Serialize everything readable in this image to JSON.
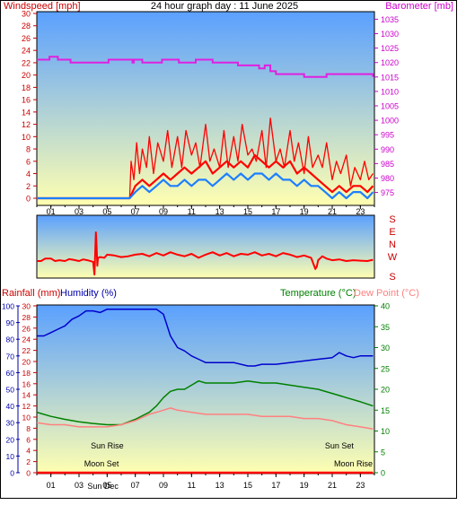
{
  "title": "24 hour graph day : 11 June 2025",
  "x_ticks": [
    "01",
    "03",
    "05",
    "07",
    "09",
    "11",
    "13",
    "15",
    "17",
    "19",
    "21",
    "23"
  ],
  "colors": {
    "wind": "#ff0000",
    "gust": "#ff0000",
    "avg": "#1e7fff",
    "baro": "#e020e0",
    "rain": "#ff0000",
    "humidity": "#0000cc",
    "temperature": "#008000",
    "dewpoint": "#ff8080",
    "sky_top": "#5aa0ff",
    "sky_bottom": "#ffffb0",
    "axis_red": "#cc0000",
    "axis_blue": "#0000aa",
    "axis_green": "#008000",
    "axis_magenta": "#cc00cc"
  },
  "chart_data": [
    {
      "type": "line",
      "name": "wind-baro",
      "ylabel_left": "Windspeed [mph]",
      "ylabel_right": "Barometer [mb]",
      "y_left_ticks": [
        "0",
        "2",
        "4",
        "6",
        "8",
        "10",
        "12",
        "14",
        "16",
        "18",
        "20",
        "22",
        "24",
        "26",
        "28",
        "30"
      ],
      "y_right_ticks": [
        "975",
        "980",
        "985",
        "990",
        "995",
        "1000",
        "1005",
        "1010",
        "1015",
        "1020",
        "1025",
        "1030",
        "1035"
      ],
      "ylim_left": [
        0,
        30
      ],
      "ylim_right": [
        973,
        1037
      ],
      "xlim": [
        0,
        24
      ],
      "gust": {
        "x": [
          0,
          6.6,
          6.7,
          6.9,
          7.1,
          7.3,
          7.5,
          7.8,
          8.0,
          8.3,
          8.6,
          9.0,
          9.3,
          9.6,
          10.0,
          10.3,
          10.6,
          11.0,
          11.3,
          11.6,
          12.0,
          12.3,
          12.6,
          13.0,
          13.3,
          13.6,
          14.0,
          14.3,
          14.6,
          15.0,
          15.3,
          15.6,
          16.0,
          16.3,
          16.6,
          17.0,
          17.3,
          17.6,
          18.0,
          18.3,
          18.6,
          19.0,
          19.3,
          19.6,
          20.0,
          20.3,
          20.6,
          21.0,
          21.3,
          21.6,
          22.0,
          22.3,
          22.6,
          23.0,
          23.3,
          23.6,
          23.9
        ],
        "y": [
          0,
          0,
          6,
          3,
          9,
          4,
          8,
          5,
          10,
          4,
          9,
          6,
          11,
          5,
          10,
          5,
          11,
          7,
          9,
          5,
          12,
          6,
          8,
          5,
          11,
          5,
          10,
          6,
          12,
          7,
          8,
          6,
          11,
          5,
          13,
          6,
          8,
          5,
          11,
          6,
          9,
          4,
          10,
          5,
          7,
          5,
          9,
          3,
          6,
          4,
          7,
          2,
          5,
          3,
          6,
          3,
          4
        ]
      },
      "wind": {
        "x": [
          0,
          6.6,
          7.0,
          7.5,
          8.0,
          8.5,
          9.0,
          9.5,
          10.0,
          10.5,
          11.0,
          11.5,
          12.0,
          12.5,
          13.0,
          13.5,
          14.0,
          14.5,
          15.0,
          15.5,
          16.0,
          16.5,
          17.0,
          17.5,
          18.0,
          18.5,
          19.0,
          19.5,
          20.0,
          20.5,
          21.0,
          21.5,
          22.0,
          22.5,
          23.0,
          23.5,
          23.9
        ],
        "y": [
          0,
          0,
          2,
          3,
          2,
          3,
          4,
          3,
          4,
          5,
          4,
          5,
          6,
          4,
          5,
          6,
          5,
          6,
          5,
          7,
          6,
          5,
          6,
          5,
          6,
          4,
          5,
          4,
          3,
          2,
          1,
          2,
          1,
          2,
          2,
          1,
          2
        ]
      },
      "avg": {
        "x": [
          0,
          6.6,
          7.0,
          7.5,
          8.0,
          8.5,
          9.0,
          9.5,
          10.0,
          10.5,
          11.0,
          11.5,
          12.0,
          12.5,
          13.0,
          13.5,
          14.0,
          14.5,
          15.0,
          15.5,
          16.0,
          16.5,
          17.0,
          17.5,
          18.0,
          18.5,
          19.0,
          19.5,
          20.0,
          20.5,
          21.0,
          21.5,
          22.0,
          22.5,
          23.0,
          23.5,
          23.9
        ],
        "y": [
          0,
          0,
          1,
          2,
          1,
          2,
          3,
          2,
          2,
          3,
          2,
          3,
          3,
          2,
          3,
          4,
          3,
          4,
          3,
          4,
          4,
          3,
          4,
          3,
          3,
          2,
          3,
          2,
          2,
          1,
          0,
          1,
          0,
          1,
          1,
          0,
          1
        ]
      },
      "baro": {
        "x": [
          0,
          0.8,
          0.9,
          1.4,
          1.5,
          2.2,
          2.4,
          5.0,
          5.1,
          6.8,
          6.9,
          7.4,
          7.5,
          8.8,
          8.9,
          10.0,
          10.1,
          11.2,
          11.3,
          12.4,
          12.5,
          14.2,
          14.3,
          15.7,
          15.8,
          16.1,
          16.2,
          16.5,
          16.6,
          16.9,
          17.0,
          18.9,
          19.0,
          20.5,
          20.6,
          23.9
        ],
        "y": [
          1021,
          1021,
          1022,
          1022,
          1021,
          1021,
          1020,
          1020,
          1021,
          1020,
          1021,
          1021,
          1020,
          1020,
          1021,
          1021,
          1020,
          1020,
          1021,
          1021,
          1020,
          1020,
          1019,
          1019,
          1018,
          1018,
          1019,
          1019,
          1017,
          1017,
          1016,
          1016,
          1015,
          1015,
          1016,
          1015
        ]
      }
    },
    {
      "type": "line",
      "name": "wind-direction",
      "y_ticks": [
        "S",
        "E",
        "N",
        "W",
        "S"
      ],
      "ylim": [
        0,
        360
      ],
      "direction": {
        "x": [
          0,
          0.3,
          0.6,
          1.0,
          1.3,
          1.6,
          2.0,
          2.3,
          2.6,
          3.0,
          3.3,
          3.6,
          4.0,
          4.1,
          4.2,
          4.25,
          4.3,
          4.35,
          4.5,
          4.8,
          5.0,
          5.5,
          6.0,
          6.5,
          7.0,
          7.5,
          8.0,
          8.5,
          9.0,
          9.5,
          10.0,
          10.5,
          11.0,
          11.5,
          12.0,
          12.5,
          13.0,
          13.5,
          14.0,
          14.5,
          15.0,
          15.5,
          16.0,
          16.5,
          17.0,
          17.5,
          18.0,
          18.5,
          19.0,
          19.5,
          19.8,
          19.9,
          20.0,
          20.3,
          20.6,
          21.0,
          21.5,
          22.0,
          22.5,
          23.0,
          23.5,
          23.9
        ],
        "y": [
          270,
          270,
          255,
          255,
          270,
          265,
          270,
          258,
          262,
          270,
          260,
          265,
          275,
          355,
          90,
          180,
          300,
          250,
          245,
          250,
          230,
          235,
          245,
          240,
          230,
          225,
          240,
          220,
          235,
          215,
          230,
          240,
          225,
          250,
          230,
          215,
          235,
          220,
          240,
          225,
          230,
          215,
          235,
          225,
          240,
          220,
          230,
          245,
          235,
          250,
          320,
          305,
          265,
          240,
          255,
          265,
          260,
          270,
          265,
          268,
          270,
          262
        ]
      }
    },
    {
      "type": "line",
      "name": "rain-humidity-temp",
      "ylabel_left_rain": "Rainfall (mm)",
      "ylabel_left_hum": "Humidity (%)",
      "ylabel_right_temp": "Temperature (°C)",
      "ylabel_right_dew": "Dew Point (°C)",
      "y_rain_ticks": [
        "0",
        "2",
        "4",
        "6",
        "8",
        "10",
        "12",
        "14",
        "16",
        "18",
        "20",
        "22",
        "24",
        "26",
        "28",
        "30"
      ],
      "y_humidity_ticks": [
        "0",
        "10",
        "20",
        "30",
        "40",
        "50",
        "60",
        "70",
        "80",
        "90",
        "100"
      ],
      "y_temp_ticks": [
        "0",
        "5",
        "10",
        "15",
        "20",
        "25",
        "30",
        "35",
        "40"
      ],
      "ylim_humidity": [
        0,
        100
      ],
      "ylim_temp": [
        0,
        40
      ],
      "humidity": {
        "x": [
          0,
          0.5,
          1.0,
          1.5,
          2.0,
          2.5,
          3.0,
          3.5,
          4.0,
          4.5,
          5.0,
          6.0,
          7.0,
          8.0,
          8.5,
          9.0,
          9.5,
          10.0,
          10.5,
          11.0,
          11.5,
          12.0,
          13.0,
          14.0,
          15.0,
          15.5,
          16.0,
          17.0,
          18.0,
          19.0,
          20.0,
          21.0,
          21.5,
          22.0,
          22.5,
          23.0,
          23.9
        ],
        "y": [
          82,
          82,
          84,
          86,
          88,
          92,
          94,
          97,
          97,
          96,
          98,
          98,
          98,
          98,
          98,
          95,
          82,
          75,
          73,
          70,
          68,
          66,
          66,
          66,
          64,
          64,
          65,
          65,
          66,
          67,
          68,
          69,
          72,
          70,
          69,
          70,
          70
        ]
      },
      "temperature": {
        "x": [
          0,
          1,
          2,
          3,
          4,
          5,
          6,
          7,
          8,
          8.5,
          9,
          9.5,
          10,
          10.5,
          11,
          11.5,
          12,
          13,
          14,
          15,
          16,
          17,
          18,
          19,
          20,
          21,
          22,
          23,
          23.9
        ],
        "y": [
          14.5,
          13.5,
          12.8,
          12.2,
          11.8,
          11.5,
          11.5,
          12.8,
          14.5,
          16,
          18,
          19.5,
          20,
          20,
          21,
          22,
          21.5,
          21.5,
          21.5,
          22,
          21.5,
          21.5,
          21,
          20.5,
          20,
          19,
          18,
          17,
          16
        ]
      },
      "dewpoint": {
        "x": [
          0,
          1,
          2,
          3,
          4,
          5,
          6,
          7,
          8,
          8.5,
          9,
          9.5,
          10,
          11,
          12,
          13,
          14,
          15,
          16,
          17,
          18,
          19,
          20,
          21,
          22,
          23,
          23.9
        ],
        "y": [
          12,
          11.5,
          11.5,
          11,
          11,
          11,
          11.5,
          12.5,
          14,
          14.5,
          15,
          15.5,
          15,
          14.5,
          14,
          14,
          14,
          14,
          13.5,
          13.5,
          13.5,
          13,
          13,
          12.5,
          11.5,
          11,
          10.5
        ]
      },
      "rain": {
        "x": [
          0,
          23.9
        ],
        "y": [
          0,
          0
        ]
      },
      "annotations": [
        {
          "text": "Sun Rise",
          "x": 5.0,
          "row": "rise"
        },
        {
          "text": "Sun Set",
          "x": 21.5,
          "row": "rise"
        },
        {
          "text": "Moon Set",
          "x": 4.6,
          "row": "moon"
        },
        {
          "text": "Moon Rise",
          "x": 22.5,
          "row": "moon"
        },
        {
          "text": "Sun Dec",
          "x": 4.7,
          "row": "axis"
        }
      ]
    }
  ]
}
